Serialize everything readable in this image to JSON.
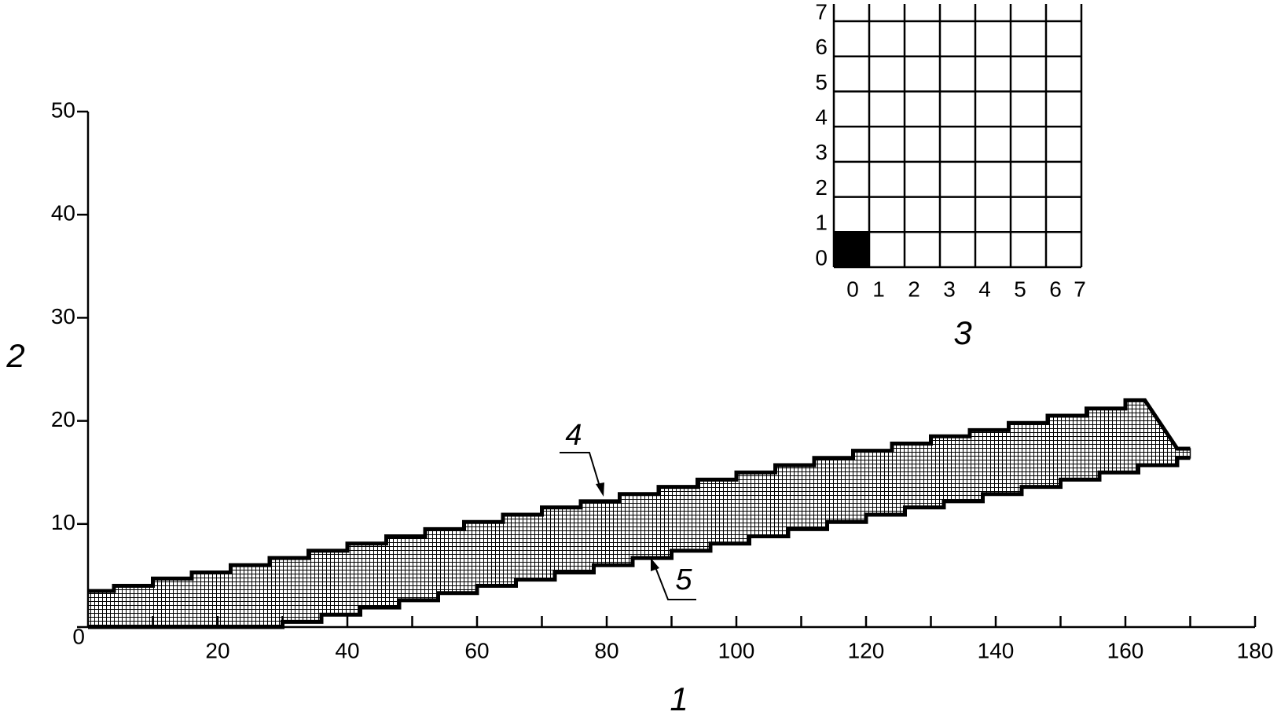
{
  "chart_data": [
    {
      "type": "band",
      "xlabel": "1",
      "ylabel": "2",
      "xlim": [
        0,
        180
      ],
      "ylim": [
        0,
        50
      ],
      "xticks": [
        20,
        40,
        60,
        80,
        100,
        120,
        140,
        160,
        180
      ],
      "xminorticks": [
        10,
        30,
        50,
        70,
        90,
        110,
        130,
        150,
        170
      ],
      "yticks": [
        0,
        10,
        20,
        30,
        40,
        50
      ],
      "grid": false,
      "series": [
        {
          "name": "4",
          "color": "#000000",
          "x": [
            0,
            4,
            4,
            10,
            10,
            16,
            16,
            22,
            22,
            28,
            28,
            34,
            34,
            40,
            40,
            46,
            46,
            52,
            52,
            58,
            58,
            64,
            64,
            70,
            70,
            76,
            76,
            82,
            82,
            88,
            88,
            94,
            94,
            100,
            100,
            106,
            106,
            112,
            112,
            118,
            118,
            124,
            124,
            130,
            130,
            136,
            136,
            142,
            142,
            148,
            148,
            154,
            154,
            160,
            160,
            163,
            168,
            170
          ],
          "values": [
            3.5,
            3.5,
            4.0,
            4.0,
            4.7,
            4.7,
            5.3,
            5.3,
            6.0,
            6.0,
            6.7,
            6.7,
            7.4,
            7.4,
            8.1,
            8.1,
            8.8,
            8.8,
            9.5,
            9.5,
            10.2,
            10.2,
            10.9,
            10.9,
            11.6,
            11.6,
            12.2,
            12.2,
            12.9,
            12.9,
            13.6,
            13.6,
            14.3,
            14.3,
            15.0,
            15.0,
            15.7,
            15.7,
            16.4,
            16.4,
            17.1,
            17.1,
            17.8,
            17.8,
            18.5,
            18.5,
            19.1,
            19.1,
            19.8,
            19.8,
            20.5,
            20.5,
            21.2,
            21.2,
            22.0,
            22.0,
            17.3,
            17.3
          ]
        },
        {
          "name": "5",
          "color": "#000000",
          "x": [
            0,
            30,
            30,
            36,
            36,
            42,
            42,
            48,
            48,
            54,
            54,
            60,
            60,
            66,
            66,
            72,
            72,
            78,
            78,
            84,
            84,
            90,
            90,
            96,
            96,
            102,
            102,
            108,
            108,
            114,
            114,
            120,
            120,
            126,
            126,
            132,
            132,
            138,
            138,
            144,
            144,
            150,
            150,
            156,
            156,
            162,
            162,
            168,
            168,
            170
          ],
          "values": [
            0,
            0,
            0.5,
            0.5,
            1.2,
            1.2,
            1.9,
            1.9,
            2.6,
            2.6,
            3.3,
            3.3,
            4.0,
            4.0,
            4.6,
            4.6,
            5.3,
            5.3,
            6.0,
            6.0,
            6.7,
            6.7,
            7.4,
            7.4,
            8.1,
            8.1,
            8.8,
            8.8,
            9.5,
            9.5,
            10.2,
            10.2,
            10.9,
            10.9,
            11.6,
            11.6,
            12.2,
            12.2,
            12.9,
            12.9,
            13.6,
            13.6,
            14.3,
            14.3,
            15.0,
            15.0,
            15.7,
            15.7,
            16.4,
            16.4
          ]
        }
      ]
    },
    {
      "type": "cellgrid",
      "xlabel": "3",
      "xlim": [
        0,
        7
      ],
      "ylim": [
        0,
        7
      ],
      "xticks": [
        0,
        1,
        2,
        3,
        4,
        5,
        6,
        7
      ],
      "yticks": [
        0,
        1,
        2,
        3,
        4,
        5,
        6,
        7
      ],
      "grid": true,
      "color": "#000000",
      "filled_cells": [
        [
          0,
          0
        ]
      ]
    }
  ]
}
